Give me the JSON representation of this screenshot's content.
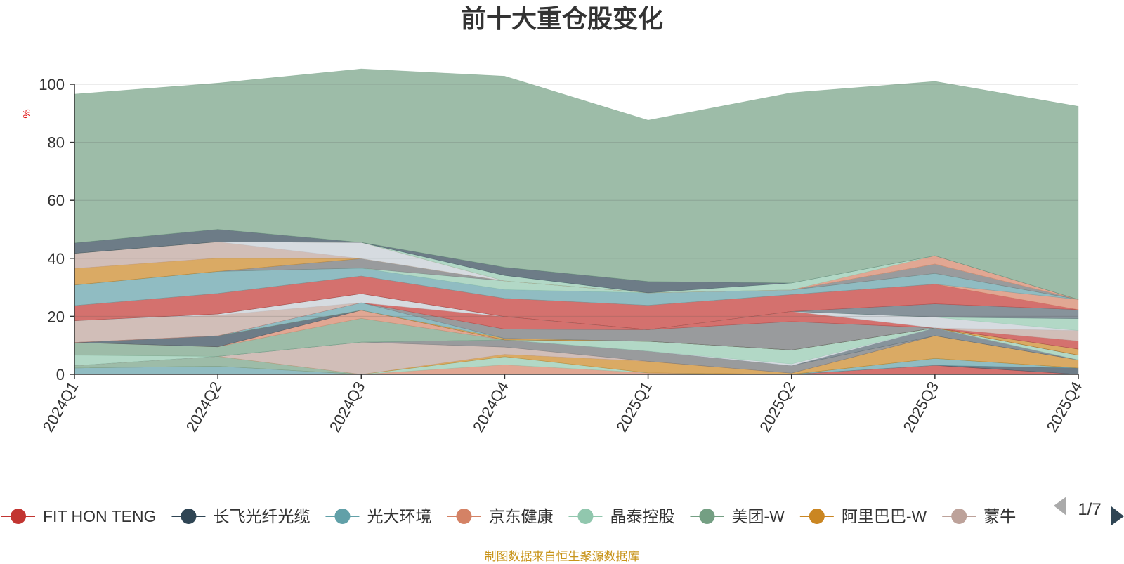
{
  "chart_data": {
    "type": "area",
    "title": "前十大重仓股变化",
    "ylabel": "%",
    "ylim": [
      0,
      100
    ],
    "yticks": [
      0,
      20,
      40,
      60,
      80,
      100
    ],
    "grid": true,
    "legend_position": "bottom",
    "legend_page": "1/7",
    "categories": [
      "2024Q1",
      "2024Q2",
      "2024Q3",
      "2024Q4",
      "2025Q1",
      "2025Q2",
      "2025Q3",
      "2025Q4"
    ],
    "series": [
      {
        "name": "FIT HON TENG",
        "color": "#c23531",
        "values": [
          0,
          0,
          0,
          0,
          0,
          0,
          3.1,
          0
        ]
      },
      {
        "name": "长飞光纤光缆",
        "color": "#2f4554",
        "values": [
          0,
          0,
          0,
          0,
          0,
          0,
          0,
          2.2
        ]
      },
      {
        "name": "光大环境",
        "color": "#61a0a8",
        "values": [
          2.2,
          2.8,
          0,
          0,
          0,
          0,
          2.4,
          0
        ]
      },
      {
        "name": "京东健康",
        "color": "#d48265",
        "values": [
          0,
          0,
          0,
          3.3,
          0.5,
          0,
          0,
          0
        ]
      },
      {
        "name": "晶泰控股",
        "color": "#91c7ae",
        "values": [
          0,
          0,
          0,
          2.8,
          0,
          0,
          0,
          0
        ]
      },
      {
        "name": "美团-W",
        "color": "#749f83",
        "values": [
          0.8,
          3.4,
          0,
          0,
          0,
          0,
          0,
          0
        ]
      },
      {
        "name": "阿里巴巴-W",
        "color": "#ca8622",
        "values": [
          0,
          0,
          0,
          0.8,
          4.0,
          0.4,
          7.8,
          2.8
        ]
      },
      {
        "name": "蒙牛",
        "color": "#bda29a",
        "values": [
          0,
          0,
          11.1,
          2.5,
          0,
          0,
          0,
          0
        ]
      },
      {
        "name": "",
        "color": "#6e7074",
        "values": [
          0,
          0,
          0,
          2.5,
          3.5,
          2.6,
          0,
          0
        ]
      },
      {
        "name": "",
        "color": "#546570",
        "values": [
          0,
          0,
          0,
          0,
          0,
          0,
          2.7,
          0
        ]
      },
      {
        "name": "",
        "color": "#c4ccd3",
        "values": [
          0,
          0,
          0,
          0,
          0,
          0.6,
          0,
          0
        ]
      },
      {
        "name": "",
        "color": "#91c7ae",
        "values": [
          3.6,
          0,
          0,
          0,
          3.4,
          4.8,
          0,
          1.6
        ]
      },
      {
        "name": "",
        "color": "#749f83",
        "values": [
          4.4,
          3.3,
          8.2,
          0,
          0,
          0,
          0,
          0
        ]
      },
      {
        "name": "",
        "color": "#d48265",
        "values": [
          0,
          0,
          2.8,
          0,
          0,
          0,
          0,
          0
        ]
      },
      {
        "name": "",
        "color": "#2f4554",
        "values": [
          0,
          3.8,
          0,
          0,
          0,
          0,
          0,
          0
        ]
      },
      {
        "name": "",
        "color": "#ca8622",
        "values": [
          0,
          0,
          0,
          0.5,
          0,
          0,
          0,
          2.1
        ]
      },
      {
        "name": "",
        "color": "#61a0a8",
        "values": [
          0,
          0,
          2.6,
          0,
          0,
          0,
          0,
          0
        ]
      },
      {
        "name": "",
        "color": "#6e7074",
        "values": [
          0,
          0,
          0,
          3.2,
          4.0,
          9.8,
          0,
          0
        ]
      },
      {
        "name": "",
        "color": "#c23531",
        "values": [
          0,
          0,
          0,
          4.3,
          0,
          3.5,
          0,
          2.8
        ]
      },
      {
        "name": "",
        "color": "#bda29a",
        "values": [
          7.5,
          7.1,
          0,
          0,
          0,
          0,
          0,
          3.6
        ]
      },
      {
        "name": "",
        "color": "#c4ccd3",
        "values": [
          0,
          0.4,
          3.1,
          0,
          0,
          0,
          3.7,
          0
        ]
      },
      {
        "name": "",
        "color": "#91c7ae",
        "values": [
          0,
          0,
          0,
          0,
          0,
          0,
          0,
          4.1
        ]
      },
      {
        "name": "",
        "color": "#546570",
        "values": [
          0,
          0,
          0,
          0,
          0,
          0,
          4.6,
          3.1
        ]
      },
      {
        "name": "",
        "color": "#c23531",
        "values": [
          5.2,
          7.1,
          6.1,
          6.3,
          8.4,
          5.8,
          6.8,
          0
        ]
      },
      {
        "name": "",
        "color": "#d48265",
        "values": [
          0,
          0,
          0,
          0,
          0,
          0,
          0,
          3.5
        ]
      },
      {
        "name": "",
        "color": "#61a0a8",
        "values": [
          7.1,
          7.6,
          2.7,
          3.0,
          4.3,
          1.6,
          3.7,
          0
        ]
      },
      {
        "name": "",
        "color": "#91c7ae",
        "values": [
          0,
          0,
          0,
          3.0,
          0,
          0,
          0,
          0
        ]
      },
      {
        "name": "",
        "color": "#6e7074",
        "values": [
          0,
          0,
          3.3,
          0,
          0,
          0,
          3.2,
          0
        ]
      },
      {
        "name": "",
        "color": "#ca8622",
        "values": [
          5.7,
          4.6,
          0,
          0,
          0,
          0,
          0,
          0
        ]
      },
      {
        "name": "",
        "color": "#bda29a",
        "values": [
          5.2,
          5.6,
          0,
          0,
          0,
          0,
          0,
          0
        ]
      },
      {
        "name": "",
        "color": "#c4ccd3",
        "values": [
          0,
          0,
          5.6,
          0,
          0,
          0,
          0,
          0
        ]
      },
      {
        "name": "",
        "color": "#d48265",
        "values": [
          0,
          0,
          0,
          0,
          0,
          0,
          2.9,
          0
        ]
      },
      {
        "name": "",
        "color": "#91c7ae",
        "values": [
          0,
          0,
          0,
          1.9,
          0,
          2.4,
          0,
          0
        ]
      },
      {
        "name": "",
        "color": "#2f4554",
        "values": [
          3.6,
          4.3,
          0,
          2.8,
          3.9,
          0,
          0,
          0
        ]
      },
      {
        "name": "",
        "color": "#749f83",
        "values": [
          51.3,
          50.4,
          59.8,
          65.9,
          55.6,
          65.6,
          60.1,
          66.6
        ]
      }
    ],
    "legend_visible": [
      "FIT HON TENG",
      "长飞光纤光缆",
      "光大环境",
      "京东健康",
      "晶泰控股",
      "美团-W",
      "阿里巴巴-W",
      "蒙牛"
    ]
  },
  "footer": {
    "source_note": "制图数据来自恒生聚源数据库"
  }
}
